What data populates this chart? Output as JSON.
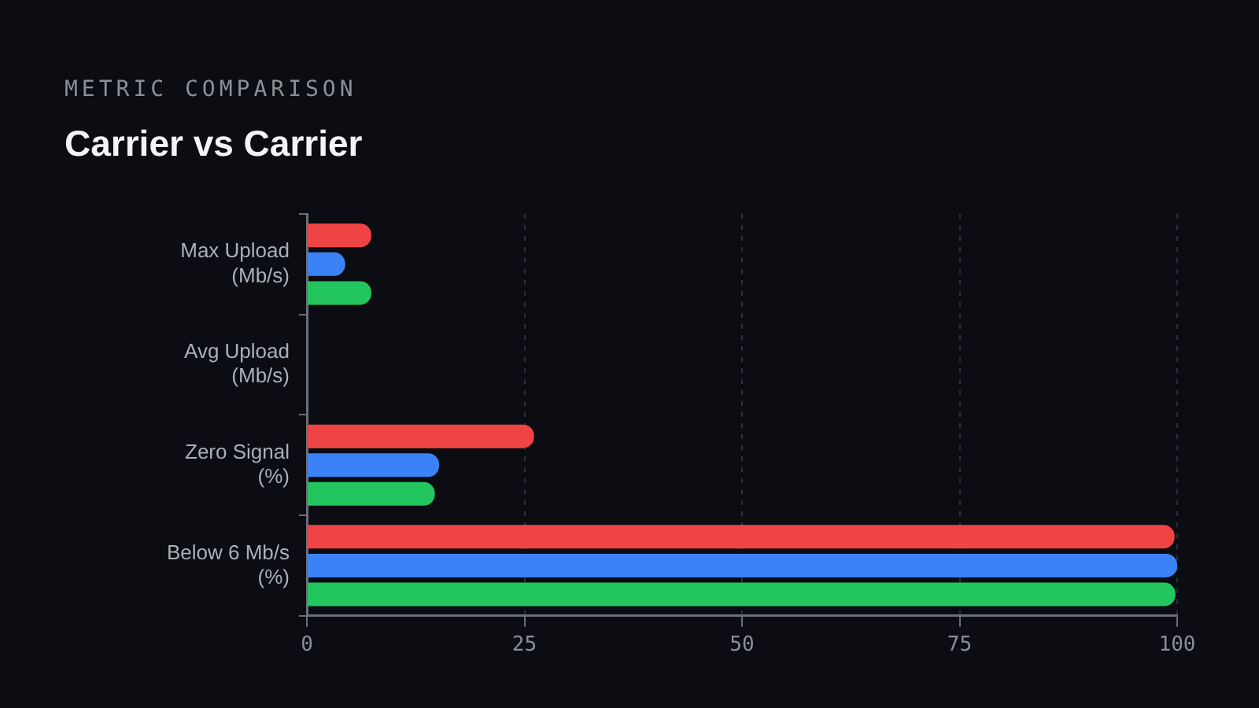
{
  "chart_data": {
    "type": "bar",
    "orientation": "horizontal",
    "subtitle": "METRIC COMPARISON",
    "title": "Carrier vs Carrier",
    "categories": [
      "Max Upload (Mb/s)",
      "Avg Upload (Mb/s)",
      "Zero Signal (%)",
      "Below 6 Mb/s (%)"
    ],
    "series": [
      {
        "color": "#ef4444",
        "values": [
          7.4,
          null,
          26.1,
          99.7
        ]
      },
      {
        "color": "#3b82f6",
        "values": [
          4.4,
          null,
          15.2,
          100
        ]
      },
      {
        "color": "#22c55e",
        "values": [
          7.4,
          null,
          14.7,
          99.8
        ]
      }
    ],
    "xlim": [
      0,
      100
    ],
    "xticks": [
      0,
      25,
      50,
      75,
      100
    ],
    "grid": "x",
    "legend": false
  }
}
